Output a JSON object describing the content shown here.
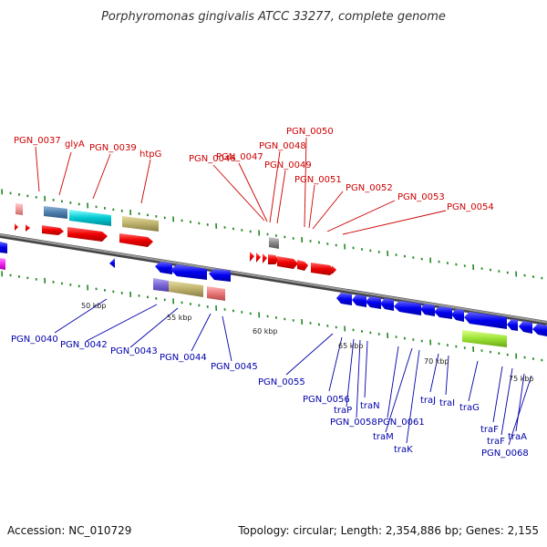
{
  "title": "Porphyromonas gingivalis ATCC 33277, complete genome",
  "footer": {
    "accession": "Accession: NC_010729",
    "summary": "Topology: circular; Length: 2,354,886 bp; Genes: 2,155"
  },
  "scale_labels": [
    "50 kbp",
    "55 kbp",
    "60 kbp",
    "65 kbp",
    "70 kbp",
    "75 kbp"
  ],
  "labels_top": [
    "PGN_0037",
    "glyA",
    "PGN_0039",
    "htpG",
    "PGN_0046",
    "PGN_0047",
    "PGN_0048",
    "PGN_0049",
    "PGN_0050",
    "PGN_0051",
    "PGN_0052",
    "PGN_0053",
    "PGN_0054"
  ],
  "labels_bottom": [
    "PGN_0040",
    "PGN_0042",
    "PGN_0043",
    "PGN_0044",
    "PGN_0045",
    "PGN_0055",
    "PGN_0056",
    "traP",
    "traN",
    "PGN_0058",
    "PGN_0061",
    "traM",
    "traK",
    "traJ",
    "traI",
    "traG",
    "traF",
    "traF",
    "traA",
    "PGN_0068"
  ],
  "colors": {
    "forward": "#ee0000",
    "reverse": "#0000ee",
    "backbone": "#666666",
    "tick": "#228822"
  }
}
